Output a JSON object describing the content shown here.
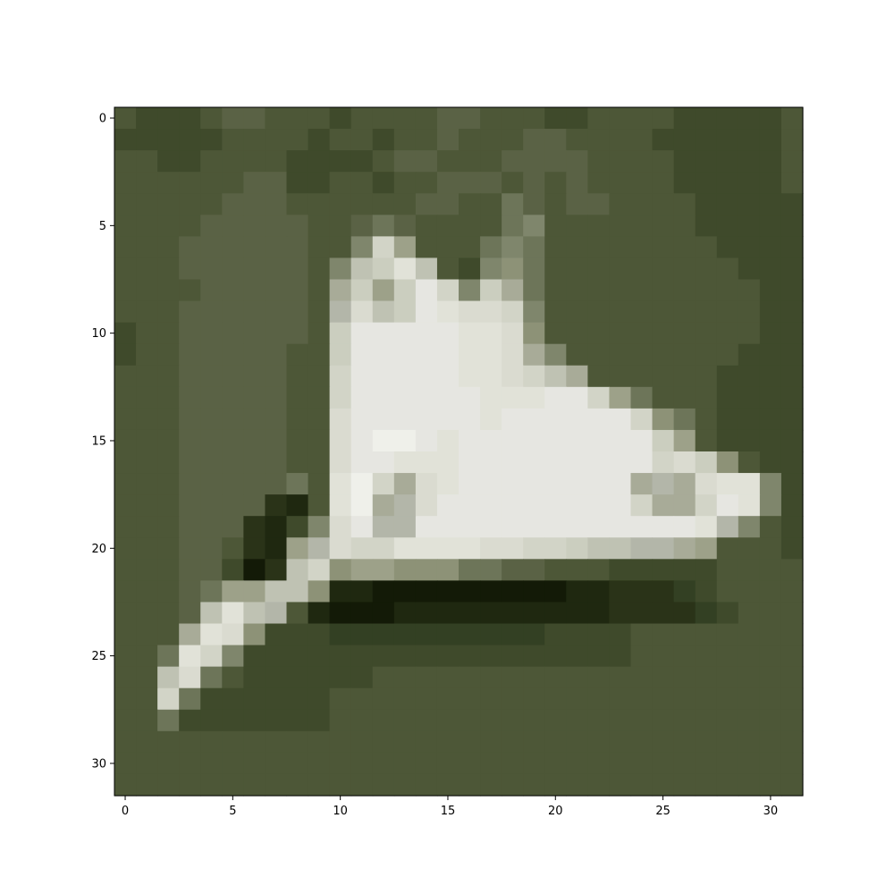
{
  "image": {
    "subject": "sneaker",
    "grid_size": 32,
    "background_color": "#4f5a3a",
    "rows": [
      "KJJJKLLKKKJKKKKLLKKKJJKKKKJJJJJK",
      "JJJJJKKKKJKKJKKLKKKLLKKKKJJJJJJK",
      "KKJJKKKKJJJJKLLKKKLLLLKKKKJJJJJK",
      "KKKKKKLLJJKKJKKLLLKLKLKKKKJJJJJK",
      "KKKKKLLLKKKKKKLLKKMLKLLKKKKJJJJJ",
      "KKKKLLLLLKKLMLKKKKMNKKKKKKKJJJJJ",
      "KKKLLLLLLKKNUPKKKMNMKKKKKKKKJJJJ",
      "KKKLLLLLLKNSTWSKJNOMKKKKKKKKKJJJ",
      "KKKKLLLLLKQTPTXUNTQMKKKKKKKKKKJJ",
      "KKKLLLLLLKRVSTXWVVUNKKKKKKKKKKJJ",
      "JKKLLLLLLKTXXXXXWWVOKKKKKKKKKKJJ",
      "JKKLLLLLKKTXXXXXWWVQNKKKKKKKKJJJ",
      "KKKLLLLLKKUXXXXXWWVUSQKKKKKKJJJJ",
      "KKKLLLLLKKUXXXXXXWWWXXUPMKKKJJJJ",
      "KKKLLLLLKKVXXXXXXWXXXXXXUOMKJJJJ",
      "KKKLLLLLKKVXYYXWXXXXXXXXXTPKJJJJ",
      "KKKLLLLLKKVXXWWWXXXXXXXXXUVTOKJJ",
      "KKKLLLLLMKWYUQVWXXXXXXXXQRQVWWNJ",
      "KKKLLLLHGKWYQRVXXXXXXXXXUQQUXWNJ",
      "KKKLLLHGJNVXRRXXXXXXXXXXXXXWRNKJ",
      "KKKLLKHGPRVUUWWWWVVUUTSSRRQPKKKJ",
      "KKKLLJFHSUOPPOOOMMLLKKKJJJJJKKKK",
      "KKKLMPPSSOGGFFFFFFFFFGGHHHIJKKKK",
      "KKKLSWSRKGFFFGGGGGGGGGGHHHHIJKKK",
      "KKKQWVOJJJIIIIIIIIIIJJJJKKKKKKKK",
      "KKMWUNJJJJJJJJJJJJJJJJJJKKKKKKKK",
      "KKSVMKJJJJJJKKKKKKKKKKKKKKKKKKKK",
      "KKUMJJJJJJKKKKKKKKKKKKKKKKKKKKKK",
      "KKMJJJJJJJKKKKKKKKKKKKKKKKKKKKKK",
      "KKKKKKKKKKKKKKKKKKKKKKKKKKKKKKKK",
      "KKKKKKKKKKKKKKKKKKKKKKKKKKKKKKKK",
      "KKKKKKKKKKKKKKKKKKKKKKKKKKKKKKKK"
    ],
    "palette": {
      "F": "#131a07",
      "G": "#1f2810",
      "H": "#2a3318",
      "I": "#334023",
      "J": "#3f4a2b",
      "K": "#4d5737",
      "L": "#5a6245",
      "M": "#6d7559",
      "N": "#7f866c",
      "O": "#8d9277",
      "P": "#9da189",
      "Q": "#a8ab98",
      "R": "#b3b6a9",
      "S": "#bfc2b3",
      "T": "#cbcebf",
      "U": "#d2d4c7",
      "V": "#dadbd0",
      "W": "#e1e2d8",
      "X": "#e6e6e1",
      "Y": "#eff0ea"
    }
  },
  "axes": {
    "x_ticks": [
      0,
      5,
      10,
      15,
      20,
      25,
      30
    ],
    "y_ticks": [
      0,
      5,
      10,
      15,
      20,
      25,
      30
    ],
    "x_range": [
      -0.5,
      31.5
    ],
    "y_range": [
      -0.5,
      31.5
    ],
    "frame_color": "#000000"
  }
}
